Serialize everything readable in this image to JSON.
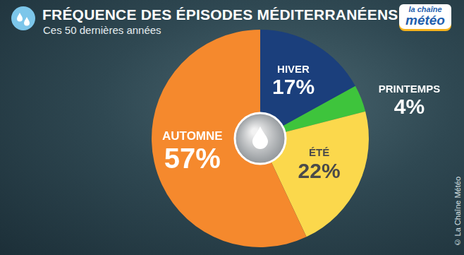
{
  "chart_data": {
    "type": "pie",
    "title": "FRÉQUENCE DES ÉPISODES MÉDITERRANÉENS",
    "subtitle": "Ces 50 dernières années",
    "categories": [
      "HIVER",
      "PRINTEMPS",
      "ÉTÉ",
      "AUTOMNE"
    ],
    "values": [
      17,
      4,
      22,
      57
    ],
    "value_labels": [
      "17%",
      "4%",
      "22%",
      "57%"
    ],
    "colors": [
      "#1b3f7c",
      "#3ec43c",
      "#fbd84c",
      "#f5892d"
    ],
    "data_labels": true,
    "logo": [
      "la chaîne",
      "météo"
    ],
    "source": "© La Chaîne Météo"
  }
}
